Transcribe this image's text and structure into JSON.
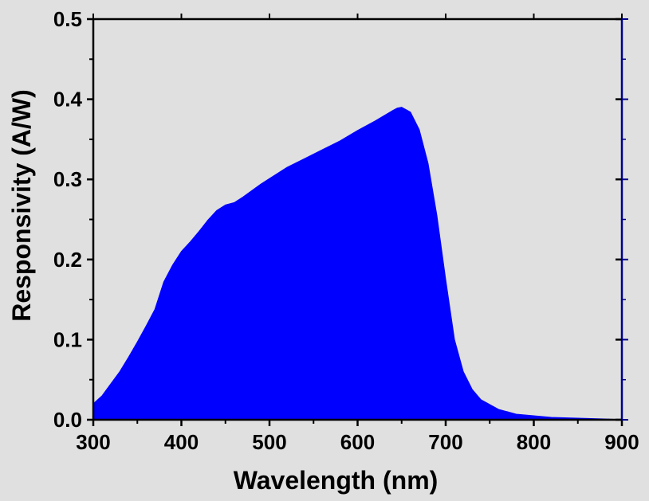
{
  "chart_data": {
    "type": "area",
    "title": "",
    "xlabel": "Wavelength (nm)",
    "ylabel": "Responsivity (A/W)",
    "xlim": [
      300,
      900
    ],
    "ylim": [
      0,
      0.5
    ],
    "x_ticks": [
      300,
      400,
      500,
      600,
      700,
      800,
      900
    ],
    "y_ticks": [
      0.0,
      0.1,
      0.2,
      0.3,
      0.4,
      0.5
    ],
    "x_tick_labels": [
      "300",
      "400",
      "500",
      "600",
      "700",
      "800",
      "900"
    ],
    "y_tick_labels": [
      "0.0",
      "0.1",
      "0.2",
      "0.3",
      "0.4",
      "0.5"
    ],
    "grid": false,
    "legend": "none",
    "colors": {
      "fill": "#0000ff",
      "frame": "#000000",
      "right_axis": "#00008b",
      "background": "#e0e0e0"
    },
    "series": [
      {
        "x": [
          300,
          310,
          320,
          330,
          340,
          350,
          360,
          370,
          375,
          380,
          390,
          400,
          410,
          420,
          430,
          440,
          450,
          460,
          470,
          480,
          490,
          500,
          520,
          540,
          560,
          580,
          600,
          620,
          640,
          645,
          650,
          660,
          670,
          680,
          690,
          700,
          710,
          720,
          730,
          740,
          760,
          780,
          800,
          820,
          850,
          880,
          900
        ],
        "y": [
          0.02,
          0.03,
          0.045,
          0.06,
          0.078,
          0.097,
          0.117,
          0.138,
          0.155,
          0.172,
          0.193,
          0.21,
          0.222,
          0.235,
          0.249,
          0.261,
          0.268,
          0.271,
          0.278,
          0.286,
          0.294,
          0.301,
          0.315,
          0.326,
          0.337,
          0.348,
          0.361,
          0.373,
          0.386,
          0.389,
          0.39,
          0.384,
          0.362,
          0.32,
          0.255,
          0.175,
          0.1,
          0.06,
          0.038,
          0.025,
          0.013,
          0.007,
          0.005,
          0.003,
          0.002,
          0.001,
          0.0
        ]
      }
    ]
  }
}
